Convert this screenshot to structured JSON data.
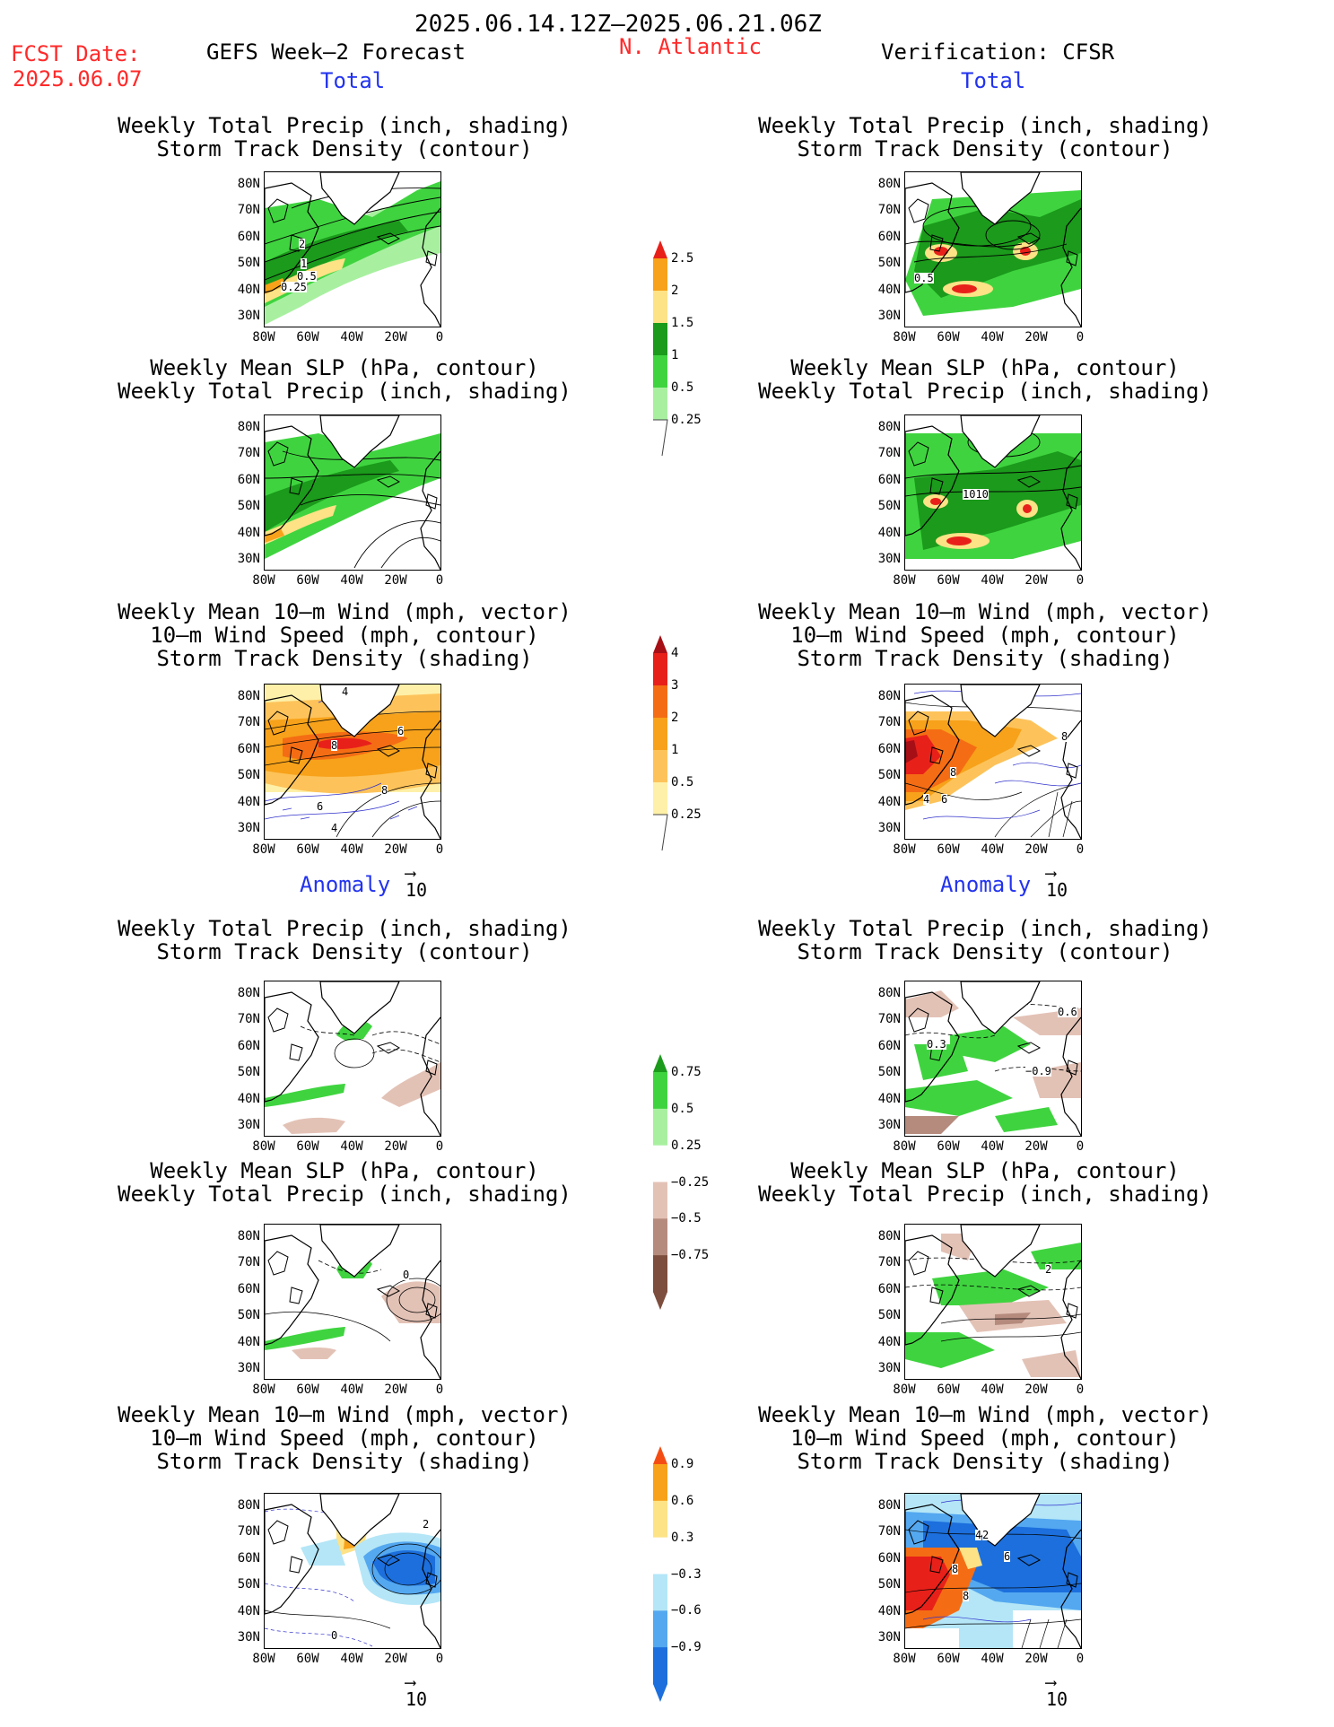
{
  "header": {
    "period": "2025.06.14.12Z–2025.06.21.06Z",
    "fcst_label": "FCST Date:",
    "fcst_date": "2025.06.07",
    "forecast_title": "GEFS Week–2 Forecast",
    "region": "N. Atlantic",
    "verification": "Verification: CFSR"
  },
  "sections": {
    "total": "Total",
    "anomaly": "Anomaly"
  },
  "titles": {
    "precip": [
      "Weekly Total Precip (inch, shading)",
      "Storm Track Density (contour)"
    ],
    "slp": [
      "Weekly Mean SLP (hPa, contour)",
      "Weekly Total Precip (inch, shading)"
    ],
    "wind": [
      "Weekly Mean 10–m Wind (mph, vector)",
      "10–m Wind Speed (mph, contour)",
      "Storm Track Density (shading)"
    ]
  },
  "axes": {
    "lat": [
      "80N",
      "70N",
      "60N",
      "50N",
      "40N",
      "30N"
    ],
    "lon": [
      "80W",
      "60W",
      "40W",
      "20W",
      "0"
    ]
  },
  "vector_ref": "10",
  "panel_labels": {
    "fc_precip_total": [
      "2",
      "1",
      "0.5",
      "0.25"
    ],
    "obs_precip_total": [
      "0.5"
    ],
    "obs_slp_total": [
      "1010"
    ],
    "fc_wind_total": [
      "4",
      "8",
      "6",
      "8",
      "6",
      "4"
    ],
    "obs_wind_total": [
      "8",
      "8",
      "4",
      "6"
    ],
    "obs_precip_anom": [
      "0.6",
      "0.3",
      "−0.9"
    ],
    "fc_slp_anom": [
      "0"
    ],
    "obs_slp_anom": [
      "2"
    ],
    "fc_wind_anom": [
      "2",
      "0"
    ],
    "obs_wind_anom": [
      "4",
      "2",
      "6",
      "8",
      "8"
    ]
  },
  "colorbars": {
    "precip_total": {
      "labels": [
        "2.5",
        "2",
        "1.5",
        "1",
        "0.5",
        "0.25"
      ],
      "colors": [
        "#e8201a",
        "#f7a21a",
        "#fde286",
        "#1b9a1b",
        "#3fd43f",
        "#a8f0a0"
      ]
    },
    "std_total": {
      "labels": [
        "4",
        "3",
        "2",
        "1",
        "0.5",
        "0.25"
      ],
      "colors": [
        "#a50f15",
        "#e8201a",
        "#f46d14",
        "#f7a21a",
        "#fdc35a",
        "#fef0a8"
      ]
    },
    "precip_anom": {
      "labels": [
        "0.75",
        "0.5",
        "0.25",
        "−0.25",
        "−0.5",
        "−0.75"
      ],
      "colors": [
        "#1b9a1b",
        "#3fd43f",
        "#a8f0a0",
        "#ffffff",
        "#e3c2b6",
        "#b58b7e",
        "#7d4e3e"
      ]
    },
    "std_anom": {
      "labels": [
        "0.9",
        "0.6",
        "0.3",
        "−0.3",
        "−0.6",
        "−0.9"
      ],
      "colors": [
        "#f44d14",
        "#f7a21a",
        "#fde286",
        "#ffffff",
        "#b4e6f7",
        "#54a8f0",
        "#1c6fdc"
      ]
    }
  }
}
